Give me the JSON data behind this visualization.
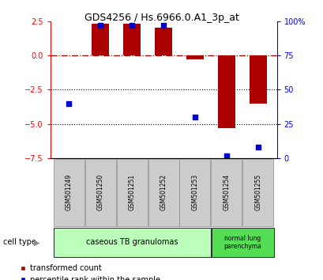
{
  "title": "GDS4256 / Hs.6966.0.A1_3p_at",
  "samples": [
    "GSM501249",
    "GSM501250",
    "GSM501251",
    "GSM501252",
    "GSM501253",
    "GSM501254",
    "GSM501255"
  ],
  "red_values": [
    0.0,
    2.3,
    2.3,
    2.0,
    -0.3,
    -5.3,
    -3.5
  ],
  "blue_values": [
    40,
    97,
    97,
    97,
    30,
    2,
    8
  ],
  "left_ylim": [
    -7.5,
    2.5
  ],
  "right_ylim": [
    0,
    100
  ],
  "left_yticks": [
    2.5,
    0,
    -2.5,
    -5.0,
    -7.5
  ],
  "right_yticks": [
    100,
    75,
    50,
    25,
    0
  ],
  "right_yticklabels": [
    "100%",
    "75",
    "50",
    "25",
    "0"
  ],
  "dotted_lines": [
    -2.5,
    -5.0
  ],
  "bar_color": "#aa0000",
  "dot_color": "#0000cc",
  "bar_width": 0.55,
  "group1_label": "caseous TB granulomas",
  "group1_color": "#bbffbb",
  "group1_samples": 5,
  "group2_label": "normal lung\nparenchyma",
  "group2_color": "#55dd55",
  "group2_samples": 2,
  "legend_red": "transformed count",
  "legend_blue": "percentile rank within the sample",
  "cell_type_label": "cell type",
  "sample_box_color": "#cccccc"
}
